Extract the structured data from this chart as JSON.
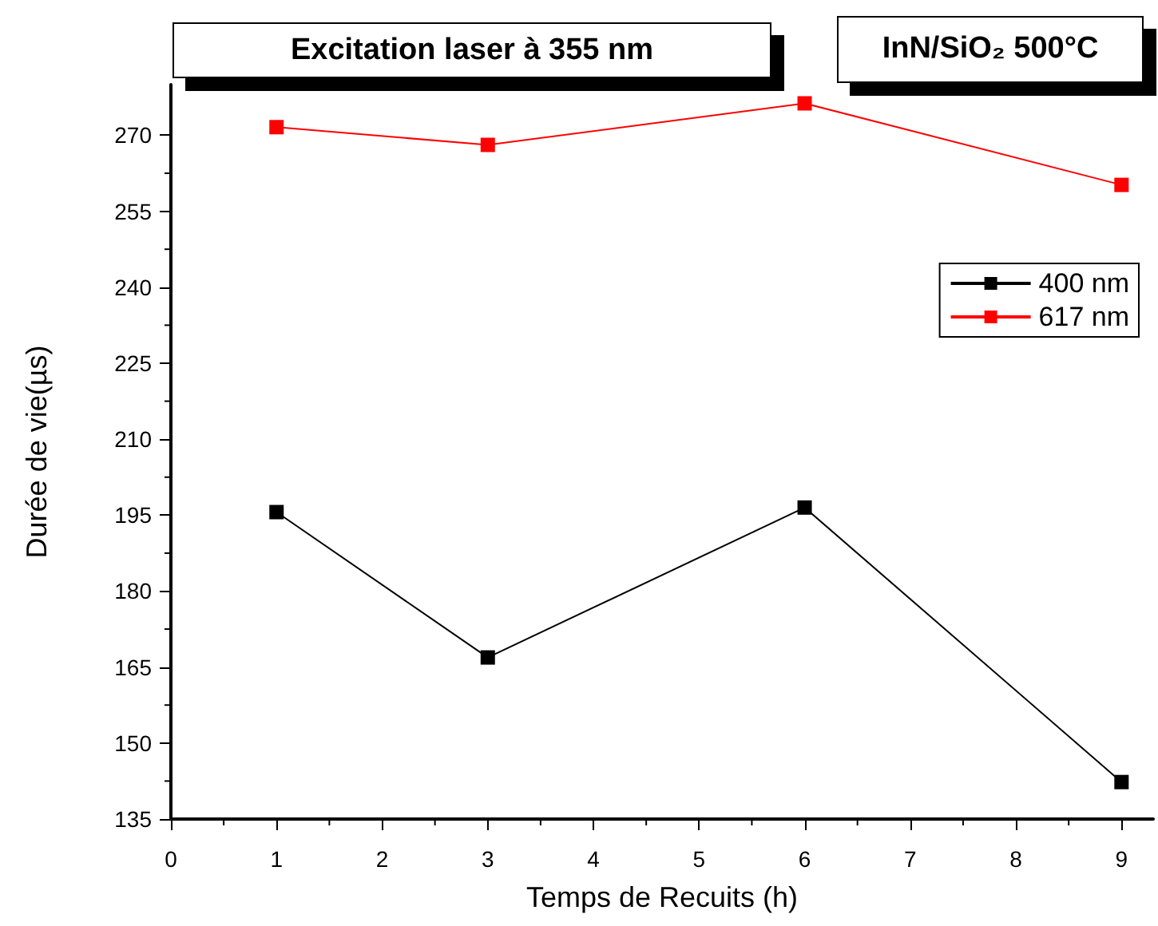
{
  "chart_data": {
    "type": "line",
    "title": "Excitation laser à 355 nm",
    "annotations": [
      "InN/SiO₂ 500°C"
    ],
    "xlabel": "Temps de Recuits (h)",
    "ylabel": "Durée de vie(µs)",
    "x": [
      1,
      3,
      6,
      9
    ],
    "series": [
      {
        "name": "400 nm",
        "color": "#000000",
        "values": [
          195.6,
          166.9,
          196.5,
          142.3
        ]
      },
      {
        "name": "617 nm",
        "color": "#ff0000",
        "values": [
          271.6,
          268.1,
          276.3,
          260.2
        ]
      }
    ],
    "xlim": [
      0,
      9.3
    ],
    "xticks": [
      0,
      1,
      2,
      3,
      4,
      5,
      6,
      7,
      8,
      9
    ],
    "ylim": [
      135,
      280
    ],
    "yticks": [
      135,
      150,
      165,
      180,
      195,
      210,
      225,
      240,
      255,
      270
    ],
    "marker": "square",
    "line_style": "solid",
    "grid": false,
    "legend": "top right"
  }
}
